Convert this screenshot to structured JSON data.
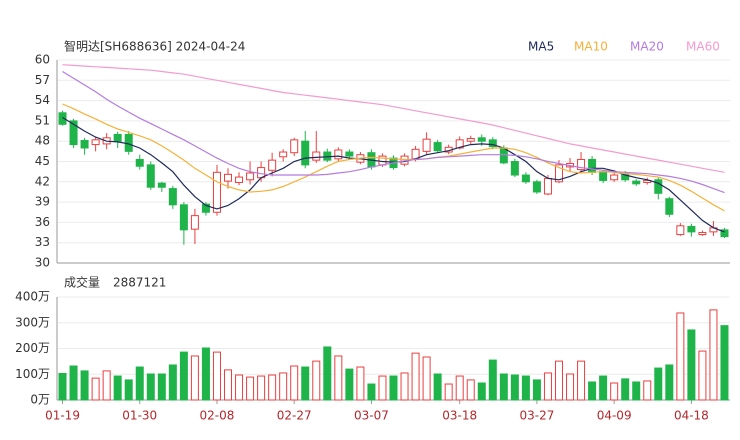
{
  "chart_data": {
    "type": "candlestick",
    "title": "智明达[SH688636] 2024-04-24",
    "categories": [
      "01-19",
      null,
      null,
      null,
      null,
      null,
      null,
      "01-30",
      null,
      null,
      null,
      null,
      null,
      null,
      "02-08",
      null,
      null,
      null,
      null,
      null,
      null,
      "02-27",
      null,
      null,
      null,
      null,
      null,
      null,
      "03-07",
      null,
      null,
      null,
      null,
      null,
      null,
      null,
      "03-18",
      null,
      null,
      null,
      null,
      null,
      null,
      "03-27",
      null,
      null,
      null,
      null,
      null,
      null,
      "04-09",
      null,
      null,
      null,
      null,
      null,
      null,
      "04-18",
      null,
      null,
      null
    ],
    "open": [
      52.2,
      51,
      48.1,
      47.5,
      47.6,
      49,
      49,
      45.3,
      44.5,
      41.8,
      41,
      38.6,
      35,
      38.7,
      37.5,
      42.1,
      41.9,
      42.3,
      42.6,
      43.7,
      45.7,
      46.3,
      48,
      45.2,
      46.4,
      45.4,
      46.4,
      44.9,
      46.3,
      44.5,
      45.5,
      44.6,
      45.4,
      46.5,
      47.8,
      46.4,
      47,
      48,
      48.5,
      48.2,
      47,
      45,
      43,
      42,
      40.2,
      42,
      44.2,
      43.8,
      45.3,
      43.5,
      42.3,
      43.2,
      42.1,
      41.9,
      42.3,
      39.5,
      34.2,
      35.4,
      34.2,
      34.6,
      34.9
    ],
    "high": [
      52.5,
      51.3,
      48.5,
      48.6,
      49.2,
      49.4,
      49.5,
      46,
      45,
      42,
      41.4,
      39,
      38,
      39,
      44.5,
      44,
      43.4,
      45,
      45,
      46.3,
      46.8,
      48.5,
      49.5,
      49.5,
      46.9,
      47.1,
      46.8,
      46.4,
      46.8,
      46.2,
      45.9,
      46.2,
      47.3,
      49.3,
      48.2,
      47.5,
      48.7,
      48.8,
      49,
      48.6,
      47.4,
      45.4,
      43.4,
      42.3,
      43,
      45.2,
      45.5,
      46.4,
      45.8,
      43.8,
      43.4,
      43.6,
      42.4,
      42.6,
      42.6,
      39.8,
      35.9,
      35.8,
      34.8,
      36.2,
      35.2
    ],
    "low": [
      50.3,
      47,
      46,
      46.5,
      46.8,
      47,
      46,
      43.8,
      40.8,
      40.5,
      38,
      32.7,
      32.8,
      37,
      37,
      41,
      41.5,
      41.6,
      42,
      42.8,
      45,
      45.8,
      44,
      44.8,
      44.9,
      45,
      45.4,
      44.6,
      43.8,
      44.2,
      43.8,
      44.3,
      45,
      46,
      46.3,
      46.1,
      46.8,
      47.6,
      47.3,
      46.8,
      44.6,
      42.7,
      41.7,
      40.2,
      40,
      41.8,
      43.5,
      43.5,
      43,
      41.8,
      42,
      42,
      41.4,
      41.6,
      39.4,
      36.8,
      34,
      33.9,
      34,
      34,
      33.7
    ],
    "close": [
      50.5,
      47.5,
      47,
      48.2,
      48.5,
      48,
      46.5,
      44.3,
      41.2,
      41.2,
      38.6,
      34.9,
      37,
      37.5,
      43.4,
      43.1,
      42.7,
      43.3,
      44.1,
      45.2,
      46.4,
      48.2,
      44.5,
      46.4,
      45.2,
      46.7,
      45.8,
      46,
      44.2,
      45.8,
      44.1,
      45.8,
      46.8,
      48.3,
      46.6,
      47.1,
      48.2,
      48.4,
      48,
      47.2,
      44.8,
      43,
      42,
      40.5,
      42.5,
      44.5,
      44.7,
      45.3,
      43.4,
      42.2,
      43,
      42.3,
      41.7,
      42.2,
      40.3,
      37.2,
      35.5,
      34.6,
      34.5,
      35.2,
      33.9
    ],
    "up_color": "#eb3f3f",
    "down_color": "#1eb44a",
    "ylim": [
      30,
      60
    ],
    "yticks": [
      30,
      33,
      36,
      39,
      42,
      45,
      48,
      51,
      54,
      57,
      60
    ],
    "grid": true,
    "series": [
      {
        "name": "MA5",
        "color": "#1f2a5c",
        "values": [
          51.5,
          50.5,
          49.5,
          48.6,
          48,
          47.9,
          47.6,
          47,
          46,
          44.8,
          43.5,
          41.5,
          39.8,
          38.5,
          38,
          38.5,
          39.5,
          40.8,
          42.6,
          43.3,
          44,
          45,
          45.5,
          45.6,
          45.7,
          45.8,
          45.5,
          45.4,
          45.2,
          45,
          44.9,
          45,
          45.4,
          46,
          46.3,
          46.6,
          47.1,
          47.5,
          47.6,
          47.5,
          47,
          46,
          45,
          43.5,
          42.5,
          42.3,
          42.8,
          43.5,
          44,
          44,
          43.6,
          43,
          42.6,
          42.3,
          41.8,
          40.8,
          39.3,
          37.8,
          36.3,
          35.2,
          34.6
        ]
      },
      {
        "name": "MA10",
        "color": "#f5b23a",
        "values": [
          53.5,
          52.8,
          52,
          51.3,
          50.5,
          49.8,
          49.3,
          48.8,
          48.2,
          47.3,
          46.3,
          45.2,
          44,
          43,
          42,
          41.3,
          40.8,
          40.5,
          40.6,
          40.8,
          41.3,
          42,
          42.7,
          43.5,
          44.3,
          45,
          45.3,
          45.5,
          45.6,
          45.5,
          45.4,
          45.3,
          45.3,
          45.4,
          45.6,
          45.8,
          46.1,
          46.4,
          46.7,
          47,
          47,
          46.8,
          46.3,
          45.6,
          44.8,
          44.1,
          43.5,
          43.3,
          43.4,
          43.5,
          43.4,
          43.2,
          43.1,
          42.9,
          42.7,
          42.2,
          41.5,
          40.6,
          39.6,
          38.6,
          37.7
        ]
      },
      {
        "name": "MA20",
        "color": "#b57be0",
        "values": [
          58.3,
          57.3,
          56.3,
          55.3,
          54.2,
          53.2,
          52.3,
          51.4,
          50.6,
          49.8,
          49,
          48.2,
          47.3,
          46.4,
          45.5,
          44.7,
          44,
          43.5,
          43.2,
          43,
          43,
          43,
          43,
          43,
          43.1,
          43.3,
          43.5,
          43.8,
          44.2,
          44.5,
          44.8,
          45.1,
          45.3,
          45.4,
          45.6,
          45.7,
          45.8,
          45.9,
          46,
          46,
          46,
          45.9,
          45.7,
          45.4,
          45,
          44.7,
          44.4,
          44.1,
          43.9,
          43.7,
          43.5,
          43.4,
          43.3,
          43.2,
          43,
          42.8,
          42.5,
          42.1,
          41.6,
          41,
          40.4
        ]
      },
      {
        "name": "MA60",
        "color": "#f39bcf",
        "values": [
          59.3,
          59.2,
          59.1,
          59,
          58.9,
          58.8,
          58.7,
          58.6,
          58.5,
          58.3,
          58.1,
          57.9,
          57.6,
          57.3,
          57,
          56.7,
          56.4,
          56.1,
          55.8,
          55.5,
          55.2,
          55,
          54.8,
          54.6,
          54.4,
          54.2,
          54,
          53.8,
          53.6,
          53.4,
          53.1,
          52.8,
          52.5,
          52.2,
          51.9,
          51.6,
          51.3,
          51,
          50.7,
          50.4,
          50,
          49.6,
          49.2,
          48.8,
          48.4,
          48,
          47.6,
          47.3,
          47,
          46.7,
          46.4,
          46.1,
          45.8,
          45.5,
          45.2,
          44.9,
          44.6,
          44.3,
          44,
          43.7,
          43.4
        ]
      }
    ],
    "volume": {
      "title": "成交量",
      "last": 2887121,
      "values": [
        103,
        132,
        113,
        85,
        113,
        93,
        78,
        128,
        101,
        101,
        136,
        186,
        171,
        202,
        186,
        117,
        97,
        89,
        93,
        97,
        105,
        132,
        128,
        151,
        206,
        171,
        120,
        128,
        62,
        93,
        93,
        105,
        182,
        167,
        101,
        62,
        93,
        78,
        66,
        155,
        101,
        97,
        93,
        78,
        105,
        151,
        101,
        151,
        70,
        93,
        66,
        82,
        70,
        74,
        124,
        136,
        338,
        272,
        190,
        350,
        288.7121
      ],
      "ylim": [
        0,
        400
      ],
      "yticks": [
        {
          "value": 0,
          "label": "0万"
        },
        {
          "value": 100,
          "label": "100万"
        },
        {
          "value": 200,
          "label": "200万"
        },
        {
          "value": 300,
          "label": "300万"
        },
        {
          "value": 400,
          "label": "400万"
        }
      ]
    }
  }
}
